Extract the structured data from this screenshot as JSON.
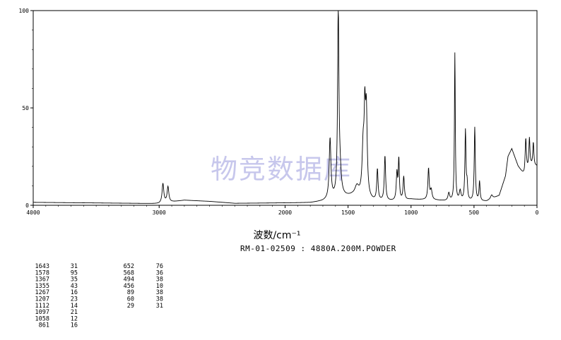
{
  "chart_data": {
    "type": "line",
    "title": "",
    "xlabel": "波数/cm⁻¹",
    "ylabel": "",
    "sample_id": "RM-01-02509 : 4880A.200M.POWDER",
    "watermark": "物竞数据库",
    "xlim": [
      4000,
      0
    ],
    "ylim": [
      0,
      100
    ],
    "x_ticks": [
      4000,
      3000,
      2000,
      1500,
      1000,
      500,
      0
    ],
    "y_ticks": [
      0,
      50,
      100
    ],
    "grid": false,
    "series": [
      {
        "baseline": [
          [
            4000,
            1.5
          ],
          [
            3500,
            1.2
          ],
          [
            3200,
            1.0
          ],
          [
            3000,
            0.8
          ],
          [
            2800,
            2.6
          ],
          [
            2600,
            2.0
          ],
          [
            2400,
            1.0
          ],
          [
            2000,
            1.2
          ],
          [
            1800,
            1.3
          ],
          [
            1700,
            2.0
          ],
          [
            1550,
            4.0
          ],
          [
            1470,
            4.5
          ],
          [
            1300,
            2.0
          ],
          [
            1100,
            2.0
          ],
          [
            1000,
            3.0
          ],
          [
            800,
            2.5
          ],
          [
            700,
            2.0
          ],
          [
            500,
            1.8
          ],
          [
            400,
            2.0
          ],
          [
            300,
            5.0
          ],
          [
            250,
            15.0
          ],
          [
            230,
            25.0
          ],
          [
            200,
            29.0
          ],
          [
            150,
            20.0
          ],
          [
            100,
            15.0
          ],
          [
            50,
            20.0
          ],
          [
            0,
            20.0
          ]
        ],
        "peaks": [
          {
            "x": 2970,
            "y": 10,
            "w": 8
          },
          {
            "x": 2930,
            "y": 8,
            "w": 8
          },
          {
            "x": 1643,
            "y": 31,
            "w": 8
          },
          {
            "x": 1578,
            "y": 95,
            "w": 6
          },
          {
            "x": 1565,
            "y": 12,
            "w": 12
          },
          {
            "x": 1430,
            "y": 5,
            "w": 20
          },
          {
            "x": 1380,
            "y": 25,
            "w": 10
          },
          {
            "x": 1367,
            "y": 35,
            "w": 6
          },
          {
            "x": 1355,
            "y": 43,
            "w": 8
          },
          {
            "x": 1267,
            "y": 16,
            "w": 6
          },
          {
            "x": 1207,
            "y": 23,
            "w": 6
          },
          {
            "x": 1112,
            "y": 14,
            "w": 6
          },
          {
            "x": 1097,
            "y": 21,
            "w": 5
          },
          {
            "x": 1058,
            "y": 12,
            "w": 6
          },
          {
            "x": 861,
            "y": 16,
            "w": 6
          },
          {
            "x": 840,
            "y": 5,
            "w": 8
          },
          {
            "x": 700,
            "y": 4,
            "w": 8
          },
          {
            "x": 652,
            "y": 76,
            "w": 4
          },
          {
            "x": 610,
            "y": 5,
            "w": 8
          },
          {
            "x": 568,
            "y": 36,
            "w": 5
          },
          {
            "x": 555,
            "y": 8,
            "w": 5
          },
          {
            "x": 494,
            "y": 38,
            "w": 5
          },
          {
            "x": 456,
            "y": 10,
            "w": 5
          },
          {
            "x": 360,
            "y": 2,
            "w": 10
          },
          {
            "x": 89,
            "y": 18,
            "w": 6
          },
          {
            "x": 60,
            "y": 15,
            "w": 5
          },
          {
            "x": 29,
            "y": 12,
            "w": 5
          }
        ]
      }
    ],
    "peak_table": {
      "col1": [
        [
          "1643",
          "31"
        ],
        [
          "1578",
          "95"
        ],
        [
          "1367",
          "35"
        ],
        [
          "1355",
          "43"
        ],
        [
          "1267",
          "16"
        ],
        [
          "1207",
          "23"
        ],
        [
          "1112",
          "14"
        ],
        [
          "1097",
          "21"
        ],
        [
          "1058",
          "12"
        ],
        [
          "861",
          "16"
        ]
      ],
      "col2": [
        [
          "652",
          "76"
        ],
        [
          "568",
          "36"
        ],
        [
          "494",
          "38"
        ],
        [
          "456",
          "10"
        ],
        [
          "89",
          "38"
        ],
        [
          "60",
          "38"
        ],
        [
          "29",
          "31"
        ]
      ]
    }
  }
}
